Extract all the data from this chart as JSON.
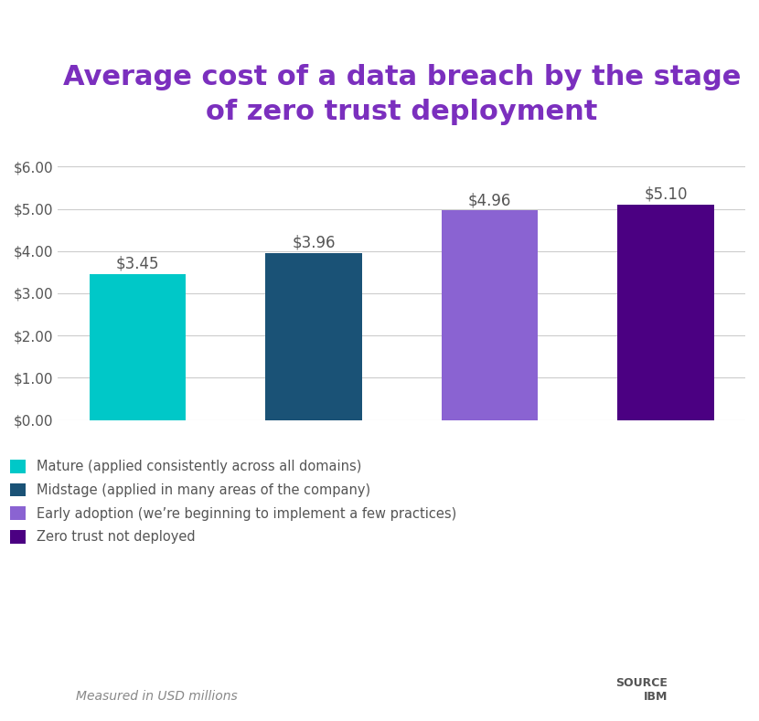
{
  "title_line1": "Average cost of a data breach by the stage",
  "title_line2": "of zero trust deployment",
  "title_color": "#7B2FBE",
  "title_fontsize": 22,
  "title_fontweight": "bold",
  "categories": [
    "Mature",
    "Midstage",
    "Early adoption",
    "Zero trust not deployed"
  ],
  "values": [
    3.45,
    3.96,
    4.96,
    5.1
  ],
  "bar_colors": [
    "#00C8C8",
    "#1A5276",
    "#8A63D2",
    "#4B0082"
  ],
  "value_labels": [
    "$3.45",
    "$3.96",
    "$4.96",
    "$5.10"
  ],
  "ylim": [
    0,
    6.5
  ],
  "yticks": [
    0,
    1.0,
    2.0,
    3.0,
    4.0,
    5.0,
    6.0
  ],
  "ytick_labels": [
    "$0.00",
    "$1.00",
    "$2.00",
    "$3.00",
    "$4.00",
    "$5.00",
    "$6.00"
  ],
  "background_color": "#ffffff",
  "legend_labels": [
    "Mature (applied consistently across all domains)",
    "Midstage (applied in many areas of the company)",
    "Early adoption (we’re beginning to implement a few practices)",
    "Zero trust not deployed"
  ],
  "legend_colors": [
    "#00C8C8",
    "#1A5276",
    "#8A63D2",
    "#4B0082"
  ],
  "footnote": "Measured in USD millions",
  "source_label": "SOURCE\nIBM",
  "grid_color": "#CCCCCC"
}
